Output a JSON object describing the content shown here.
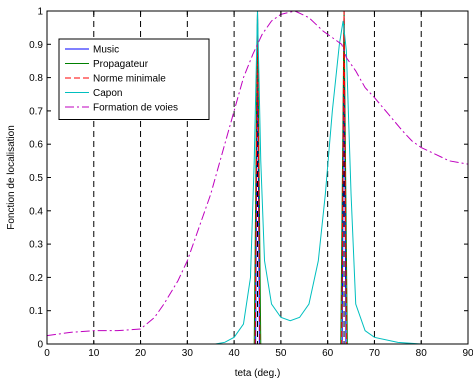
{
  "chart_data": {
    "type": "line",
    "title": "",
    "xlabel": "teta (deg.)",
    "ylabel": "Fonction de localisation",
    "xlim": [
      0,
      90
    ],
    "ylim": [
      0,
      1
    ],
    "xticks": [
      0,
      10,
      20,
      30,
      40,
      50,
      60,
      70,
      80,
      90
    ],
    "yticks": [
      0,
      0.1,
      0.2,
      0.3,
      0.4,
      0.5,
      0.6,
      0.7,
      0.8,
      0.9,
      1
    ],
    "xtick_labels": [
      "0",
      "10",
      "20",
      "30",
      "40",
      "50",
      "60",
      "70",
      "80",
      "90"
    ],
    "ytick_labels": [
      "0",
      "0.1",
      "0.2",
      "0.3",
      "0.4",
      "0.5",
      "0.6",
      "0.7",
      "0.8",
      "0.9",
      "1"
    ],
    "vertical_dashed_lines": [
      10,
      20,
      30,
      40,
      45,
      50,
      60,
      63.5,
      70,
      80
    ],
    "legend_position": "top-left",
    "series": [
      {
        "name": "Music",
        "color": "#0000ff",
        "dash": "solid",
        "points": [
          [
            0,
            0
          ],
          [
            44.6,
            0
          ],
          [
            45,
            1
          ],
          [
            45.4,
            0
          ],
          [
            63.1,
            0
          ],
          [
            63.5,
            1
          ],
          [
            63.9,
            0
          ],
          [
            90,
            0
          ]
        ]
      },
      {
        "name": "Propagateur",
        "color": "#008000",
        "dash": "solid",
        "points": [
          [
            0,
            0
          ],
          [
            44.3,
            0
          ],
          [
            45,
            1
          ],
          [
            45.7,
            0
          ],
          [
            62.8,
            0
          ],
          [
            63.5,
            1
          ],
          [
            64.2,
            0
          ],
          [
            90,
            0
          ]
        ]
      },
      {
        "name": "Norme minimale",
        "color": "#ff0000",
        "dash": "dashed",
        "points": [
          [
            0,
            0
          ],
          [
            44.5,
            0
          ],
          [
            45,
            1
          ],
          [
            45.5,
            0
          ],
          [
            63,
            0
          ],
          [
            63.5,
            1
          ],
          [
            64,
            0
          ],
          [
            90,
            0
          ]
        ]
      },
      {
        "name": "Capon",
        "color": "#00bfbf",
        "dash": "solid",
        "points": [
          [
            0,
            0
          ],
          [
            36,
            0
          ],
          [
            38,
            0.005
          ],
          [
            40,
            0.02
          ],
          [
            42,
            0.06
          ],
          [
            43.5,
            0.2
          ],
          [
            44.3,
            0.55
          ],
          [
            45,
            1
          ],
          [
            45.7,
            0.55
          ],
          [
            46.5,
            0.25
          ],
          [
            48,
            0.12
          ],
          [
            50,
            0.08
          ],
          [
            52,
            0.07
          ],
          [
            54,
            0.08
          ],
          [
            56,
            0.12
          ],
          [
            58,
            0.25
          ],
          [
            59.5,
            0.45
          ],
          [
            61,
            0.7
          ],
          [
            62.5,
            0.9
          ],
          [
            63.3,
            0.97
          ],
          [
            64,
            0.88
          ],
          [
            65,
            0.45
          ],
          [
            66,
            0.12
          ],
          [
            68,
            0.04
          ],
          [
            70,
            0.02
          ],
          [
            75,
            0.005
          ],
          [
            80,
            0
          ],
          [
            90,
            0
          ]
        ]
      },
      {
        "name": "Formation de voies",
        "color": "#bf00bf",
        "dash": "dashdot",
        "points": [
          [
            0,
            0.025
          ],
          [
            5,
            0.035
          ],
          [
            10,
            0.04
          ],
          [
            15,
            0.04
          ],
          [
            20,
            0.045
          ],
          [
            23,
            0.08
          ],
          [
            25,
            0.12
          ],
          [
            28,
            0.19
          ],
          [
            30,
            0.25
          ],
          [
            32,
            0.33
          ],
          [
            35,
            0.45
          ],
          [
            38,
            0.6
          ],
          [
            40,
            0.7
          ],
          [
            42,
            0.8
          ],
          [
            44,
            0.87
          ],
          [
            46,
            0.93
          ],
          [
            48,
            0.97
          ],
          [
            50,
            0.99
          ],
          [
            53,
            1.0
          ],
          [
            56,
            0.98
          ],
          [
            59,
            0.94
          ],
          [
            61,
            0.92
          ],
          [
            63,
            0.9
          ],
          [
            64,
            0.86
          ],
          [
            66,
            0.82
          ],
          [
            68,
            0.77
          ],
          [
            70,
            0.74
          ],
          [
            73,
            0.69
          ],
          [
            76,
            0.64
          ],
          [
            78,
            0.61
          ],
          [
            80,
            0.59
          ],
          [
            83,
            0.57
          ],
          [
            86,
            0.55
          ],
          [
            90,
            0.54
          ]
        ]
      }
    ]
  }
}
